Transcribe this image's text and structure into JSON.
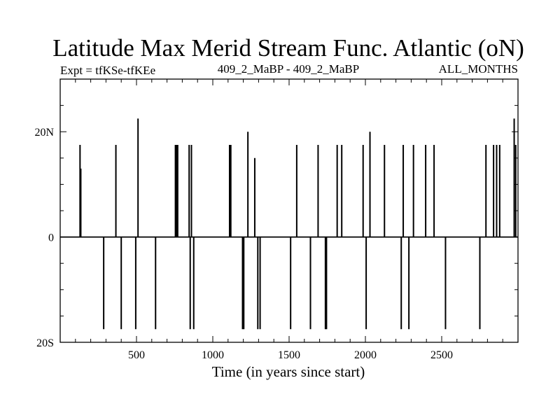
{
  "chart_data": {
    "type": "line",
    "title": "Latitude Max Merid Stream Func. Atlantic (oN)",
    "subtitle_left": "Expt = tfKSe-tfKEe",
    "subtitle_center": "409_2_MaBP - 409_2_MaBP",
    "subtitle_right": "ALL_MONTHS",
    "xlabel": "Time (in years since start)",
    "ylabel": "",
    "xlim": [
      0,
      3000
    ],
    "ylim": [
      -20,
      30
    ],
    "x_ticks": [
      {
        "value": 500,
        "label": "500"
      },
      {
        "value": 1000,
        "label": "1000"
      },
      {
        "value": 1500,
        "label": "1500"
      },
      {
        "value": 2000,
        "label": "2000"
      },
      {
        "value": 2500,
        "label": "2500"
      }
    ],
    "y_ticks": [
      {
        "value": 20,
        "label": "20N"
      },
      {
        "value": 0,
        "label": "0"
      },
      {
        "value": -20,
        "label": "20S"
      }
    ],
    "baseline": 0,
    "spikes": [
      {
        "x": 130,
        "y": 17.5
      },
      {
        "x": 135,
        "y": 13
      },
      {
        "x": 285,
        "y": -17.5
      },
      {
        "x": 365,
        "y": 17.5
      },
      {
        "x": 400,
        "y": -17.5
      },
      {
        "x": 495,
        "y": -17.5
      },
      {
        "x": 510,
        "y": 22.5
      },
      {
        "x": 625,
        "y": -17.5
      },
      {
        "x": 755,
        "y": 17.5
      },
      {
        "x": 762,
        "y": 17.5
      },
      {
        "x": 770,
        "y": 17.5
      },
      {
        "x": 845,
        "y": 17.5
      },
      {
        "x": 852,
        "y": -17.5
      },
      {
        "x": 860,
        "y": 17.5
      },
      {
        "x": 875,
        "y": -17.5
      },
      {
        "x": 1110,
        "y": 17.5
      },
      {
        "x": 1118,
        "y": 17.5
      },
      {
        "x": 1195,
        "y": -17.5
      },
      {
        "x": 1203,
        "y": -17.5
      },
      {
        "x": 1230,
        "y": 20
      },
      {
        "x": 1275,
        "y": 15
      },
      {
        "x": 1295,
        "y": -17.5
      },
      {
        "x": 1310,
        "y": -17.5
      },
      {
        "x": 1510,
        "y": -17.5
      },
      {
        "x": 1550,
        "y": 17.5
      },
      {
        "x": 1640,
        "y": -17.5
      },
      {
        "x": 1690,
        "y": 17.5
      },
      {
        "x": 1738,
        "y": -17.5
      },
      {
        "x": 1745,
        "y": -17.5
      },
      {
        "x": 1815,
        "y": 17.5
      },
      {
        "x": 1845,
        "y": 17.5
      },
      {
        "x": 1985,
        "y": 17.5
      },
      {
        "x": 2005,
        "y": -17.5
      },
      {
        "x": 2030,
        "y": 20
      },
      {
        "x": 2125,
        "y": 17.5
      },
      {
        "x": 2235,
        "y": -17.5
      },
      {
        "x": 2248,
        "y": 17.5
      },
      {
        "x": 2285,
        "y": -17.5
      },
      {
        "x": 2315,
        "y": 17.5
      },
      {
        "x": 2395,
        "y": 17.5
      },
      {
        "x": 2450,
        "y": 17.5
      },
      {
        "x": 2525,
        "y": -17.5
      },
      {
        "x": 2750,
        "y": -17.5
      },
      {
        "x": 2790,
        "y": 17.5
      },
      {
        "x": 2840,
        "y": 17.5
      },
      {
        "x": 2860,
        "y": 17.5
      },
      {
        "x": 2880,
        "y": 17.5
      },
      {
        "x": 2975,
        "y": 22.5
      },
      {
        "x": 2985,
        "y": 17.5
      }
    ]
  }
}
